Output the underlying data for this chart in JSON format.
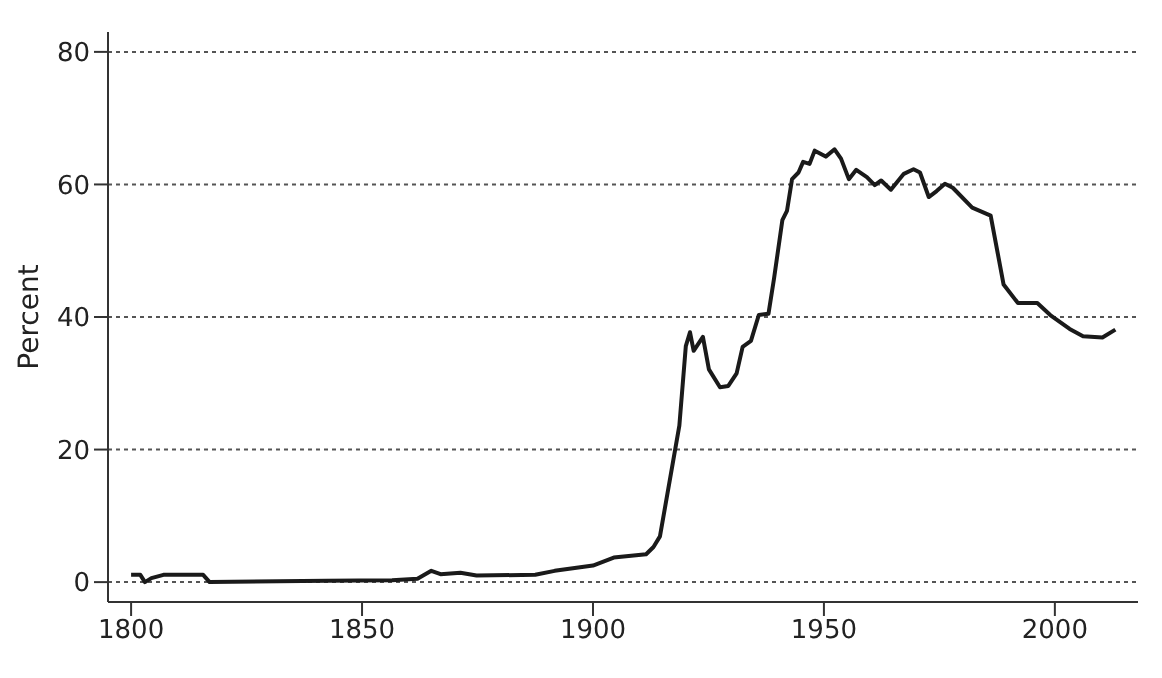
{
  "chart_data": {
    "type": "line",
    "ylabel": "Percent",
    "xlim": [
      1795,
      2018
    ],
    "xticks": [
      1800,
      1850,
      1900,
      1950,
      2000
    ],
    "ylim": [
      -3,
      83
    ],
    "yticks": [
      0,
      20,
      40,
      60,
      80
    ],
    "grid": "y",
    "line_style": "solid",
    "marker": "none",
    "legend": false,
    "series": [
      {
        "color": "#1a1a1a",
        "x": [
          1800,
          1802,
          1803,
          1804.4,
          1807,
          1815.6,
          1817,
          1842.4,
          1856.5,
          1862,
          1865,
          1867,
          1871.3,
          1874.8,
          1887.5,
          1891.7,
          1900,
          1904.5,
          1911.5,
          1913.1,
          1914.5,
          1918.7,
          1920.1,
          1921,
          1921.8,
          1923.8,
          1925.1,
          1927.5,
          1929.3,
          1931.1,
          1932.4,
          1934.2,
          1935.9,
          1938,
          1939.2,
          1941,
          1942,
          1943.1,
          1944.5,
          1945.5,
          1946.9,
          1948,
          1950.4,
          1952.3,
          1953.7,
          1955.4,
          1957,
          1959.3,
          1961,
          1962.4,
          1964.5,
          1967.3,
          1969.4,
          1970.8,
          1972.7,
          1974.4,
          1976.2,
          1977.9,
          1982.1,
          1986.1,
          1988.9,
          1992,
          1996.2,
          1999,
          2003.2,
          2006.1,
          2010.3,
          2013.1
        ],
        "values": [
          1.1,
          1.1,
          0,
          0.6,
          1.1,
          1.1,
          0,
          0.2,
          0.3,
          0.5,
          1.7,
          1.2,
          1.4,
          1.0,
          1.1,
          1.7,
          2.5,
          3.7,
          4.2,
          5.3,
          6.9,
          23.6,
          35.6,
          37.7,
          34.9,
          37,
          32.1,
          29.4,
          29.6,
          31.5,
          35.5,
          36.4,
          40.3,
          40.5,
          45.8,
          54.6,
          56,
          60.8,
          61.8,
          63.4,
          63.1,
          65.1,
          64.2,
          65.3,
          63.9,
          60.8,
          62.2,
          61.1,
          59.9,
          60.6,
          59.2,
          61.6,
          62.3,
          61.8,
          58.1,
          59,
          60.1,
          59.5,
          56.5,
          55.3,
          44.9,
          42.1,
          42.1,
          40.3,
          38.2,
          37.1,
          36.9,
          38.1
        ]
      }
    ]
  }
}
